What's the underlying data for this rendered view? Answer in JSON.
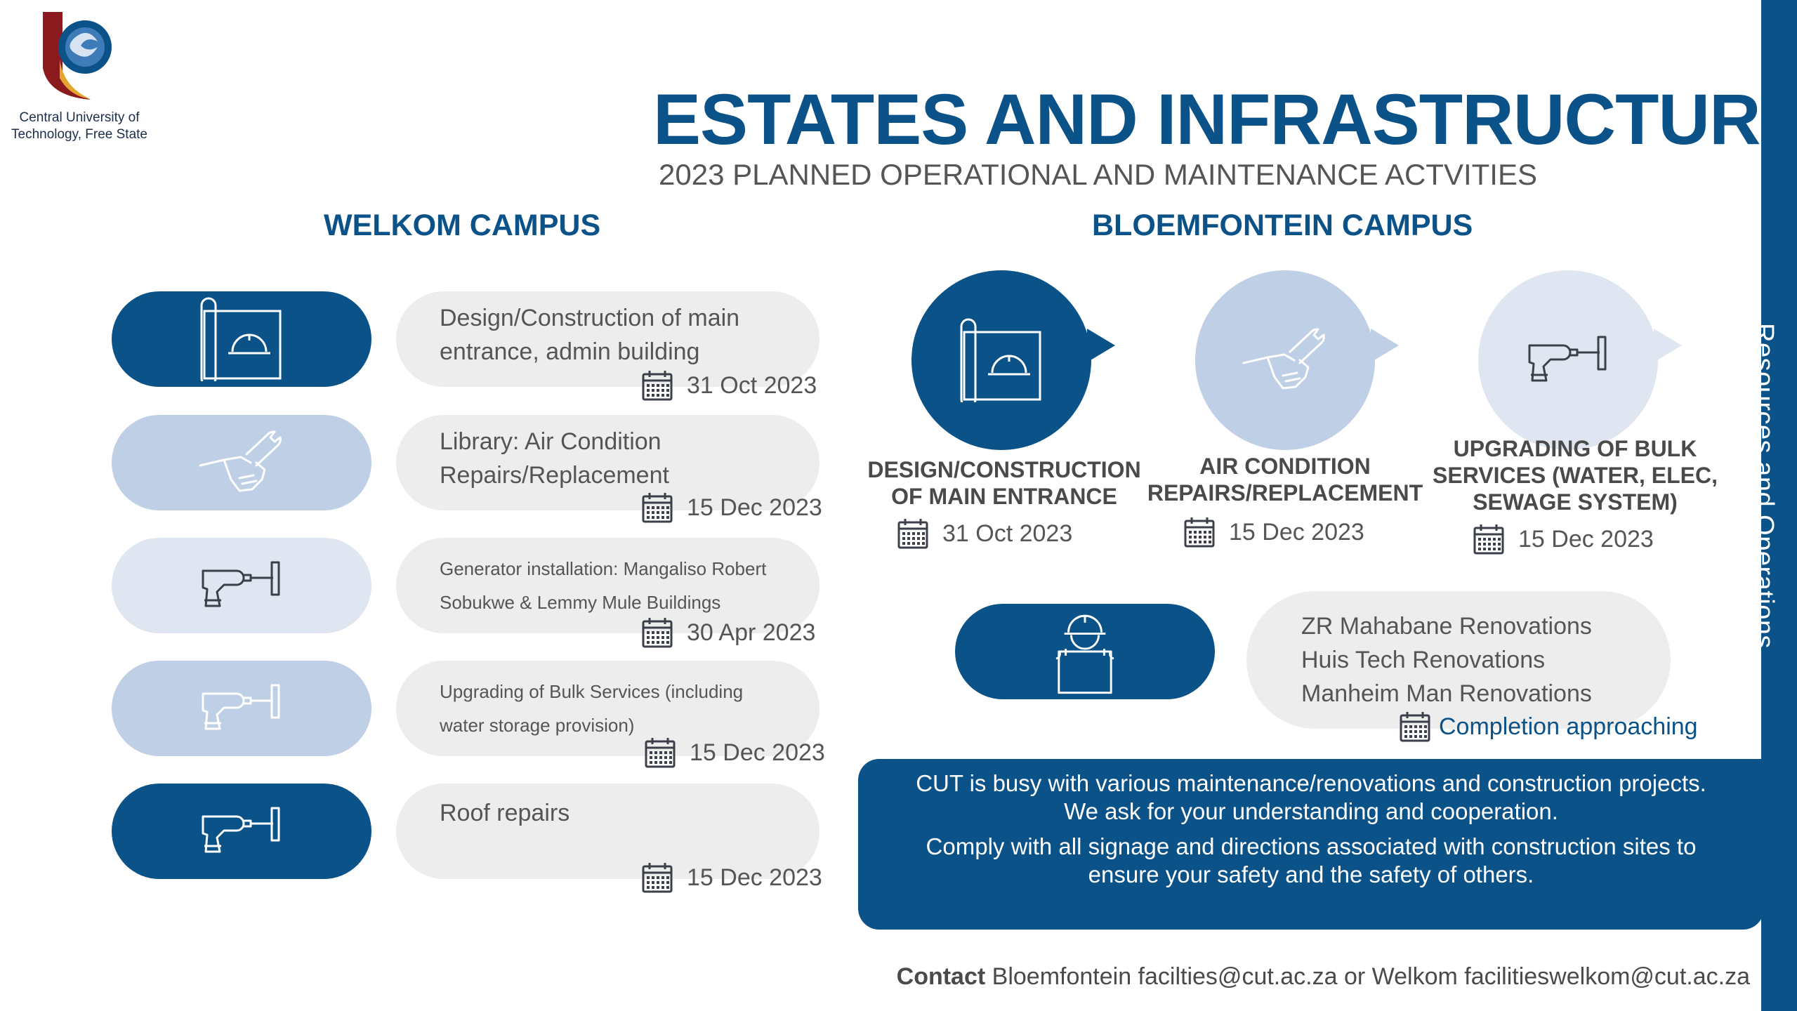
{
  "sidebar": {
    "label": "Resources and Operations"
  },
  "logo": {
    "line1": "Central University of",
    "line2": "Technology, Free State"
  },
  "header": {
    "title": "ESTATES AND INFRASTRUCTURE",
    "subtitle": "2023 PLANNED OPERATIONAL AND MAINTENANCE ACTVITIES"
  },
  "welkom": {
    "title": "WELKOM CAMPUS",
    "items": [
      {
        "line1": "Design/Construction of main",
        "line2": "entrance, admin building",
        "date": "31 Oct 2023",
        "icon": "blueprint-icon"
      },
      {
        "line1": "Library: Air Condition",
        "line2": "Repairs/Replacement",
        "date": "15 Dec 2023",
        "icon": "wrench-hand-icon"
      },
      {
        "line1": "Generator installation: Mangaliso Robert",
        "line2": "Sobukwe  & Lemmy Mule Buildings",
        "date": "30 Apr 2023",
        "icon": "drill-icon"
      },
      {
        "line1": "Upgrading of Bulk Services (including",
        "line2": "water storage provision)",
        "date": "15 Dec 2023",
        "icon": "drill-icon"
      },
      {
        "line1": "Roof repairs",
        "line2": "",
        "date": "15 Dec 2023",
        "icon": "drill-icon"
      }
    ]
  },
  "bloem": {
    "title": "BLOEMFONTEIN CAMPUS",
    "items": [
      {
        "line1": "DESIGN/CONSTRUCTION",
        "line2": "OF MAIN ENTRANCE",
        "line3": "",
        "date": "31 Oct 2023",
        "icon": "blueprint-icon"
      },
      {
        "line1": "AIR CONDITION",
        "line2": "REPAIRS/REPLACEMENT",
        "line3": "",
        "date": "15 Dec 2023",
        "icon": "wrench-hand-icon"
      },
      {
        "line1": "UPGRADING OF BULK",
        "line2": "SERVICES (WATER, ELEC,",
        "line3": "SEWAGE SYSTEM)",
        "date": "15 Dec 2023",
        "icon": "drill-icon"
      }
    ],
    "renovations": {
      "lines": [
        "ZR Mahabane Renovations",
        "Huis Tech Renovations",
        "Manheim Man Renovations"
      ],
      "status": "Completion approaching",
      "icon": "worker-icon"
    }
  },
  "notice": {
    "line1": "CUT is busy with various maintenance/renovations and construction projects.",
    "line2": "We ask for your understanding and cooperation.",
    "line3": "Comply with all signage and directions associated with construction sites to",
    "line4": "ensure your safety and the safety of others."
  },
  "contact": {
    "label": "Contact",
    "text": " Bloemfontein facilties@cut.ac.za or Welkom facilitieswelkom@cut.ac.za"
  },
  "colors": {
    "brand_blue": "#0b5289",
    "light_blue": "#bfcfe6",
    "pale_blue": "#e0e6f1",
    "pill_grey": "#ededee",
    "logo_red": "#8b1a1f",
    "logo_gold": "#e3a72f"
  }
}
